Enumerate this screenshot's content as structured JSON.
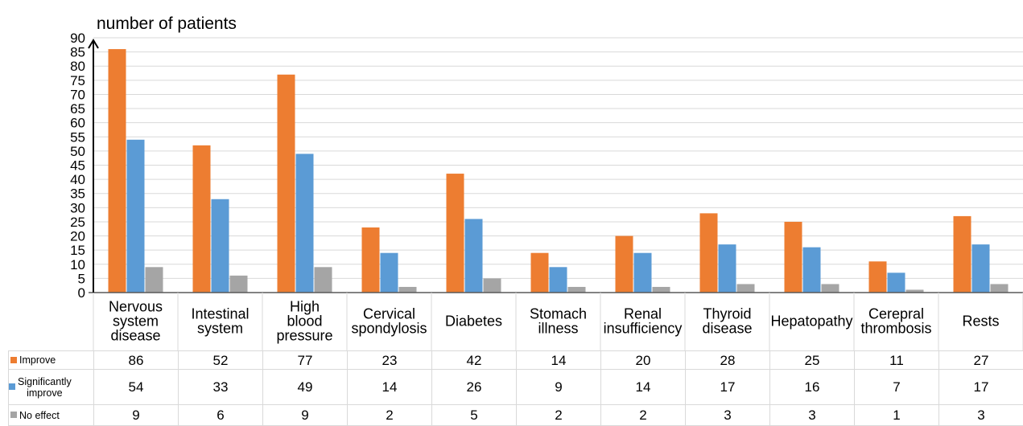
{
  "chart_data": {
    "type": "bar",
    "ylabel": "number of patients",
    "ylim": [
      0,
      90
    ],
    "yticks": [
      0,
      5,
      10,
      15,
      20,
      25,
      30,
      35,
      40,
      45,
      50,
      55,
      60,
      65,
      70,
      75,
      80,
      85,
      90
    ],
    "grid": true,
    "legend": "data table rows (left)",
    "categories": [
      [
        "Nervous",
        "system",
        "disease"
      ],
      [
        "Intestinal",
        "system"
      ],
      [
        "High",
        "blood",
        "pressure"
      ],
      [
        "Cervical",
        "spondylosis"
      ],
      [
        "Diabetes"
      ],
      [
        "Stomach",
        "illness"
      ],
      [
        "Renal",
        "insufficiency"
      ],
      [
        "Thyroid",
        "disease"
      ],
      [
        "Hepatopathy"
      ],
      [
        "Cerepral",
        "thrombosis"
      ],
      [
        "Rests"
      ]
    ],
    "series": [
      {
        "name": "Improve",
        "color": "#ed7d31",
        "values": [
          86,
          52,
          77,
          23,
          42,
          14,
          20,
          28,
          25,
          11,
          27
        ]
      },
      {
        "name": "Significantly improve",
        "name_lines": [
          "Significantly",
          "improve"
        ],
        "color": "#5b9bd5",
        "values": [
          54,
          33,
          49,
          14,
          26,
          9,
          14,
          17,
          16,
          7,
          17
        ]
      },
      {
        "name": "No effect",
        "color": "#a5a5a5",
        "values": [
          9,
          6,
          9,
          2,
          5,
          2,
          2,
          3,
          3,
          1,
          3
        ]
      }
    ]
  }
}
